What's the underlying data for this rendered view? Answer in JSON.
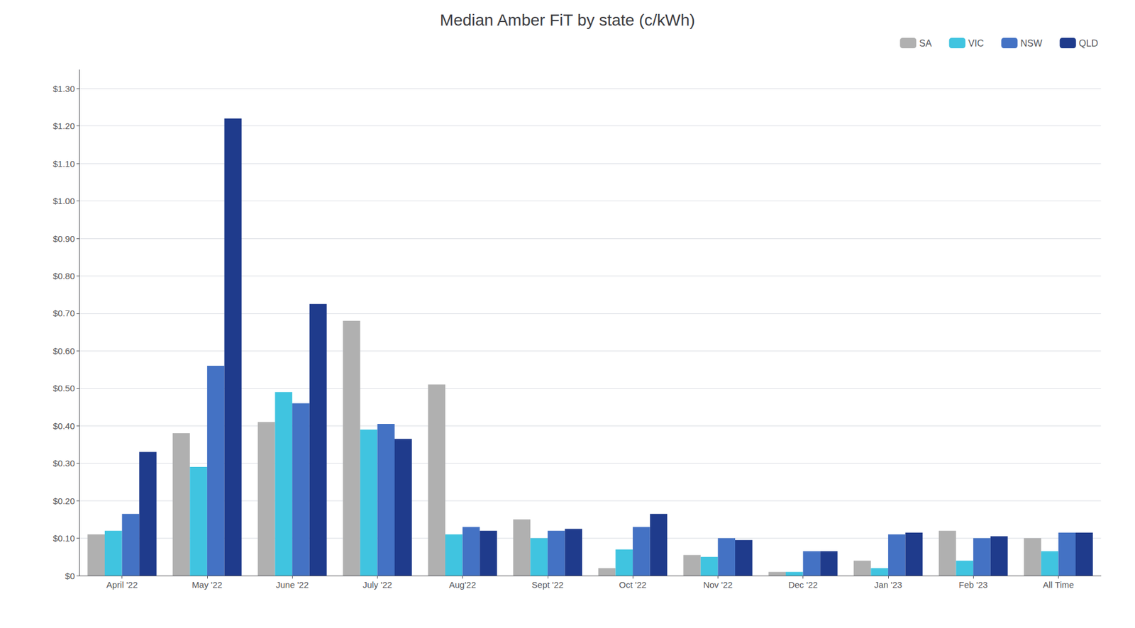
{
  "chart_data": {
    "type": "bar",
    "title": "Median Amber FiT by state (c/kWh)",
    "categories": [
      "April '22",
      "May '22",
      "June '22",
      "July '22",
      "Aug'22",
      "Sept '22",
      "Oct '22",
      "Nov '22",
      "Dec '22",
      "Jan '23",
      "Feb '23",
      "All Time"
    ],
    "series": [
      {
        "name": "SA",
        "color": "#b0b0b0",
        "values": [
          0.11,
          0.38,
          0.41,
          0.68,
          0.51,
          0.15,
          0.02,
          0.055,
          0.01,
          0.04,
          0.12,
          0.1
        ]
      },
      {
        "name": "VIC",
        "color": "#40c4e0",
        "values": [
          0.12,
          0.29,
          0.49,
          0.39,
          0.11,
          0.1,
          0.07,
          0.05,
          0.01,
          0.02,
          0.04,
          0.065
        ]
      },
      {
        "name": "NSW",
        "color": "#4472c4",
        "values": [
          0.165,
          0.56,
          0.46,
          0.405,
          0.13,
          0.12,
          0.13,
          0.1,
          0.065,
          0.11,
          0.1,
          0.115
        ]
      },
      {
        "name": "QLD",
        "color": "#1f3b8c",
        "values": [
          0.33,
          1.22,
          0.725,
          0.365,
          0.12,
          0.125,
          0.165,
          0.095,
          0.065,
          0.115,
          0.105,
          0.115
        ]
      }
    ],
    "ylim": [
      0,
      1.35
    ],
    "yticks": [
      {
        "value": 0,
        "label": "$0"
      },
      {
        "value": 0.1,
        "label": "$0.10"
      },
      {
        "value": 0.2,
        "label": "$0.20"
      },
      {
        "value": 0.3,
        "label": "$0.30"
      },
      {
        "value": 0.4,
        "label": "$0.40"
      },
      {
        "value": 0.5,
        "label": "$0.50"
      },
      {
        "value": 0.6,
        "label": "$0.60"
      },
      {
        "value": 0.7,
        "label": "$0.70"
      },
      {
        "value": 0.8,
        "label": "$0.80"
      },
      {
        "value": 0.9,
        "label": "$0.90"
      },
      {
        "value": 1.0,
        "label": "$1.00"
      },
      {
        "value": 1.1,
        "label": "$1.10"
      },
      {
        "value": 1.2,
        "label": "$1.20"
      },
      {
        "value": 1.3,
        "label": "$1.30"
      }
    ],
    "grid": true,
    "legend": "upper right"
  }
}
